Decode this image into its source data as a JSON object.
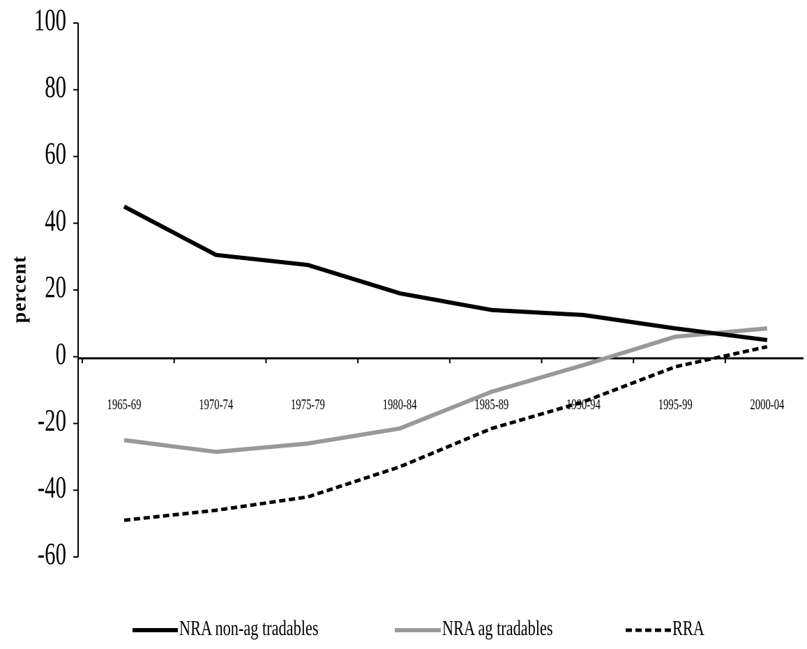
{
  "chart_data": {
    "type": "line",
    "title": "",
    "xlabel": "",
    "ylabel": "percent",
    "categories": [
      "1965-69",
      "1970-74",
      "1975-79",
      "1980-84",
      "1985-89",
      "1990-94",
      "1995-99",
      "2000-04"
    ],
    "ylim": [
      -60,
      100
    ],
    "yticks": [
      100,
      80,
      60,
      40,
      20,
      0,
      -20,
      -40,
      -60
    ],
    "ytick_labels": [
      "100",
      "80",
      "60",
      "40",
      "20",
      "0",
      "-20",
      "-40",
      "-60"
    ],
    "grid": false,
    "legend_position": "bottom",
    "series": [
      {
        "name": "NRA non-ag tradables",
        "color": "#000000",
        "style": "solid",
        "values": [
          45,
          30.5,
          27.5,
          19,
          14,
          12.5,
          8.5,
          5
        ]
      },
      {
        "name": "NRA ag tradables",
        "color": "#999999",
        "style": "solid",
        "values": [
          -25,
          -28.5,
          -26,
          -21.5,
          -10.5,
          -2.5,
          6,
          8.5
        ]
      },
      {
        "name": "RRA",
        "color": "#000000",
        "style": "dashed",
        "values": [
          -49,
          -46,
          -42,
          -33,
          -21.5,
          -13.5,
          -3,
          3
        ]
      }
    ]
  }
}
